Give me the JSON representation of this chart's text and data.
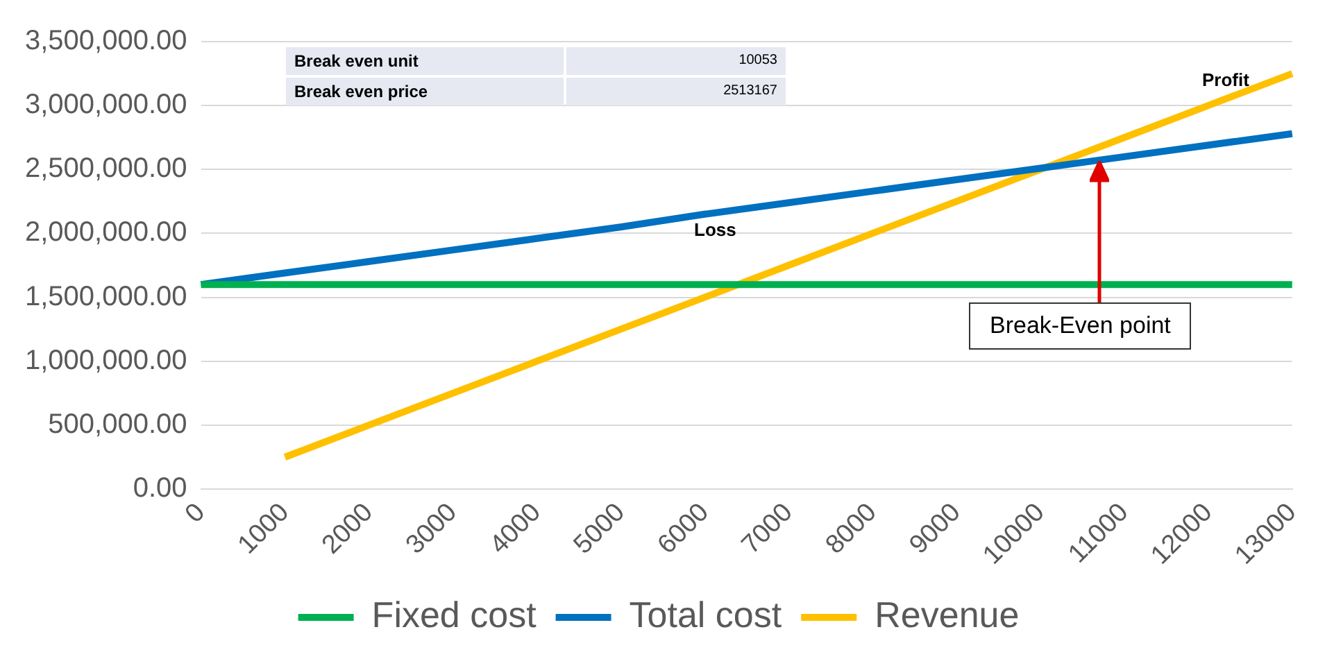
{
  "chart_data": {
    "type": "line",
    "categories": [
      "0",
      "1000",
      "2000",
      "3000",
      "4000",
      "5000",
      "6000",
      "7000",
      "8000",
      "9000",
      "10000",
      "11000",
      "12000",
      "13000"
    ],
    "series": [
      {
        "name": "Fixed cost",
        "color": "#00b050",
        "values": [
          1600000,
          1600000,
          1600000,
          1600000,
          1600000,
          1600000,
          1600000,
          1600000,
          1600000,
          1600000,
          1600000,
          1600000,
          1600000,
          1600000
        ]
      },
      {
        "name": "Total cost",
        "color": "#0070c0",
        "values": [
          1600000,
          1690000,
          1780000,
          1870000,
          1960000,
          2050000,
          2150000,
          2240000,
          2330000,
          2420000,
          2510000,
          2600000,
          2690000,
          2780000
        ]
      },
      {
        "name": "Revenue",
        "color": "#ffc000",
        "values": [
          null,
          250000,
          500000,
          750000,
          1000000,
          1250000,
          1500000,
          1750000,
          2000000,
          2250000,
          2500000,
          2750000,
          3000000,
          3250000
        ]
      }
    ],
    "ylim": [
      0,
      3500000
    ],
    "yticks": [
      {
        "value": 0,
        "label": "0.00"
      },
      {
        "value": 500000,
        "label": "500,000.00"
      },
      {
        "value": 1000000,
        "label": "1,000,000.00"
      },
      {
        "value": 1500000,
        "label": "1,500,000.00"
      },
      {
        "value": 2000000,
        "label": "2,000,000.00"
      },
      {
        "value": 2500000,
        "label": "2,500,000.00"
      },
      {
        "value": 3000000,
        "label": "3,000,000.00"
      },
      {
        "value": 3500000,
        "label": "3,500,000.00"
      }
    ],
    "grid": "y",
    "legend": "bottom",
    "marker": "none",
    "line_style": "solid",
    "annotations": [
      "Break even unit",
      "10053",
      "Break even price",
      "2513167",
      "Loss",
      "Profit",
      "Break-Even point"
    ]
  }
}
